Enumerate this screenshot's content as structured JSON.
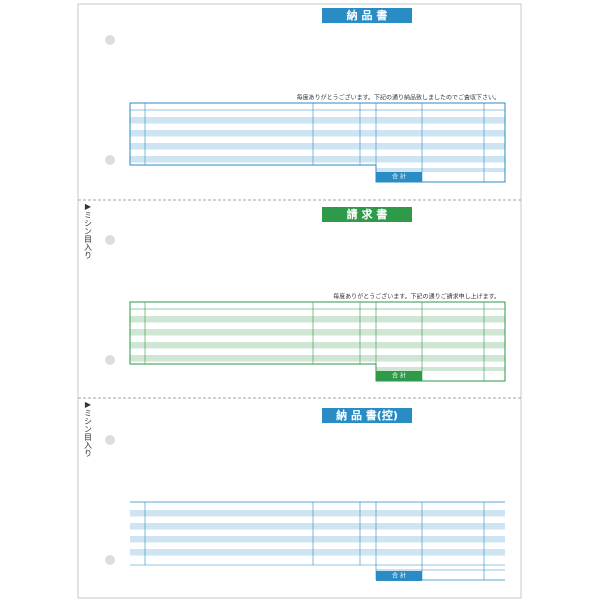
{
  "sections": [
    {
      "title": "納 品 書",
      "message": "毎度ありがとうございます。下記の通り納品致しましたのでご査収下さい。",
      "total_label": "合 計"
    },
    {
      "title": "請 求 書",
      "message": "毎度ありがとうございます。下記の通りご請求申し上げます。",
      "total_label": "合 計"
    },
    {
      "title": "納 品 書(控)",
      "total_label": "合 計"
    }
  ],
  "perforation_labels": [
    "▶ミシン目入り",
    "▶ミシン目入り"
  ]
}
